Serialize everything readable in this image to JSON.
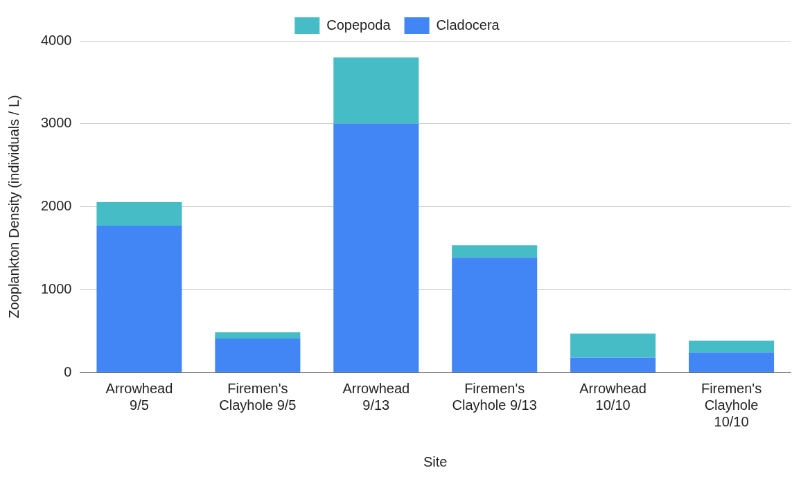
{
  "chart_data": {
    "type": "bar",
    "xlabel": "Site",
    "ylabel": "Zooplankton Density (individuals / L)",
    "categories": [
      "Arrowhead 9/5",
      "Firemen's Clayhole 9/5",
      "Arrowhead 9/13",
      "Firemen's Clayhole 9/13",
      "Arrowhead 10/10",
      "Firemen's Clayhole 10/10"
    ],
    "stacked": true,
    "series": [
      {
        "name": "Cladocera",
        "color": "#4285f4",
        "values": [
          1770,
          410,
          3000,
          1385,
          180,
          240
        ]
      },
      {
        "name": "Copepoda",
        "color": "#46bdc6",
        "values": [
          285,
          75,
          800,
          150,
          290,
          145
        ]
      }
    ],
    "ylim": [
      0,
      4000
    ],
    "yticks": [
      0,
      1000,
      2000,
      3000,
      4000
    ],
    "grid": "y",
    "legend": "top"
  }
}
